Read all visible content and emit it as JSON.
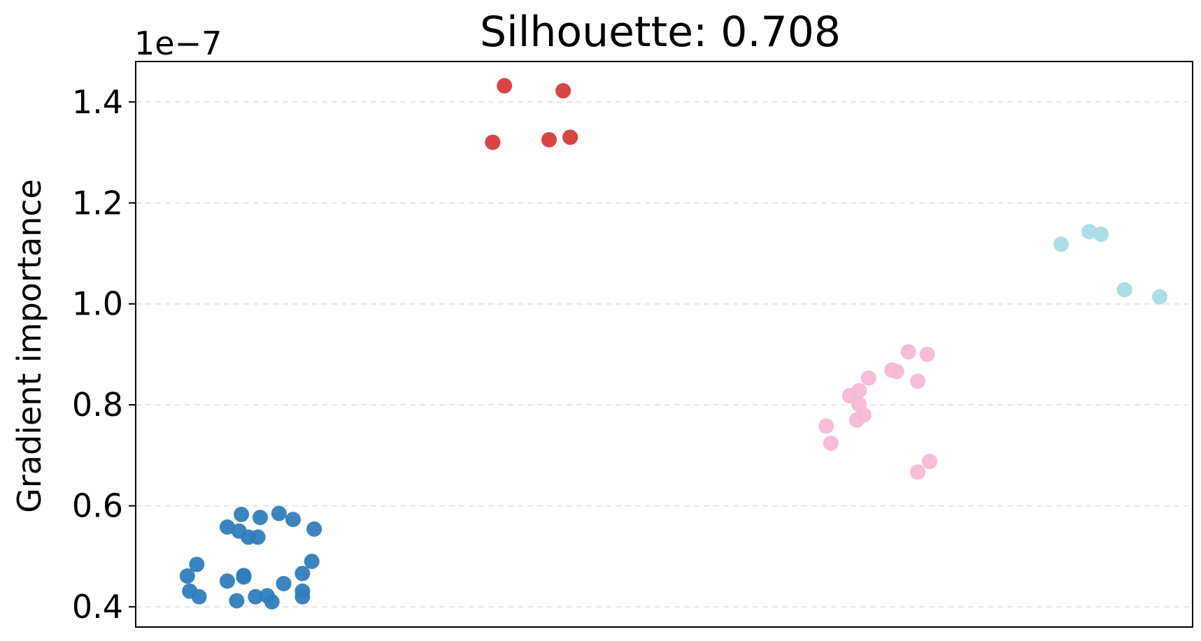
{
  "chart_data": {
    "type": "scatter",
    "title": "Silhouette: 0.708",
    "ylabel": "Gradient importance",
    "y_offset_label": "1e−7",
    "ylim": [
      0.36,
      1.48
    ],
    "xlim": [
      -0.2,
      4.3
    ],
    "grid": "y-dashed",
    "yticks": [
      0.4,
      0.6,
      0.8,
      1.0,
      1.2,
      1.4
    ],
    "ytick_labels": [
      "0.4",
      "0.6",
      "0.8",
      "1.0",
      "1.2",
      "1.4"
    ],
    "series": [
      {
        "color": "#2f7ebc",
        "points": [
          {
            "x": 0.19,
            "y": 0.558
          },
          {
            "x": 0.25,
            "y": 0.583
          },
          {
            "x": 0.24,
            "y": 0.55
          },
          {
            "x": 0.33,
            "y": 0.577
          },
          {
            "x": 0.41,
            "y": 0.585
          },
          {
            "x": 0.47,
            "y": 0.573
          },
          {
            "x": 0.56,
            "y": 0.554
          },
          {
            "x": 0.32,
            "y": 0.538
          },
          {
            "x": 0.28,
            "y": 0.538
          },
          {
            "x": 0.06,
            "y": 0.484
          },
          {
            "x": 0.02,
            "y": 0.461
          },
          {
            "x": 0.19,
            "y": 0.451
          },
          {
            "x": 0.26,
            "y": 0.462
          },
          {
            "x": 0.26,
            "y": 0.459
          },
          {
            "x": 0.43,
            "y": 0.446
          },
          {
            "x": 0.51,
            "y": 0.466
          },
          {
            "x": 0.55,
            "y": 0.49
          },
          {
            "x": 0.03,
            "y": 0.431
          },
          {
            "x": 0.07,
            "y": 0.42
          },
          {
            "x": 0.23,
            "y": 0.412
          },
          {
            "x": 0.31,
            "y": 0.42
          },
          {
            "x": 0.36,
            "y": 0.422
          },
          {
            "x": 0.38,
            "y": 0.41
          },
          {
            "x": 0.51,
            "y": 0.431
          },
          {
            "x": 0.51,
            "y": 0.42
          }
        ]
      },
      {
        "color": "#d63a3a",
        "points": [
          {
            "x": 1.37,
            "y": 1.432
          },
          {
            "x": 1.62,
            "y": 1.422
          },
          {
            "x": 1.32,
            "y": 1.32
          },
          {
            "x": 1.56,
            "y": 1.325
          },
          {
            "x": 1.65,
            "y": 1.33
          }
        ]
      },
      {
        "color": "#f5b8d6",
        "points": [
          {
            "x": 2.74,
            "y": 0.758
          },
          {
            "x": 2.76,
            "y": 0.724
          },
          {
            "x": 2.84,
            "y": 0.818
          },
          {
            "x": 2.88,
            "y": 0.828
          },
          {
            "x": 2.88,
            "y": 0.801
          },
          {
            "x": 2.87,
            "y": 0.77
          },
          {
            "x": 2.9,
            "y": 0.78
          },
          {
            "x": 2.92,
            "y": 0.853
          },
          {
            "x": 3.02,
            "y": 0.869
          },
          {
            "x": 3.04,
            "y": 0.866
          },
          {
            "x": 3.09,
            "y": 0.905
          },
          {
            "x": 3.13,
            "y": 0.847
          },
          {
            "x": 3.17,
            "y": 0.9
          },
          {
            "x": 3.13,
            "y": 0.667
          },
          {
            "x": 3.18,
            "y": 0.688
          }
        ]
      },
      {
        "color": "#a6dce6",
        "points": [
          {
            "x": 3.74,
            "y": 1.118
          },
          {
            "x": 3.86,
            "y": 1.143
          },
          {
            "x": 3.91,
            "y": 1.138
          },
          {
            "x": 4.01,
            "y": 1.028
          },
          {
            "x": 4.16,
            "y": 1.014
          }
        ]
      }
    ]
  }
}
